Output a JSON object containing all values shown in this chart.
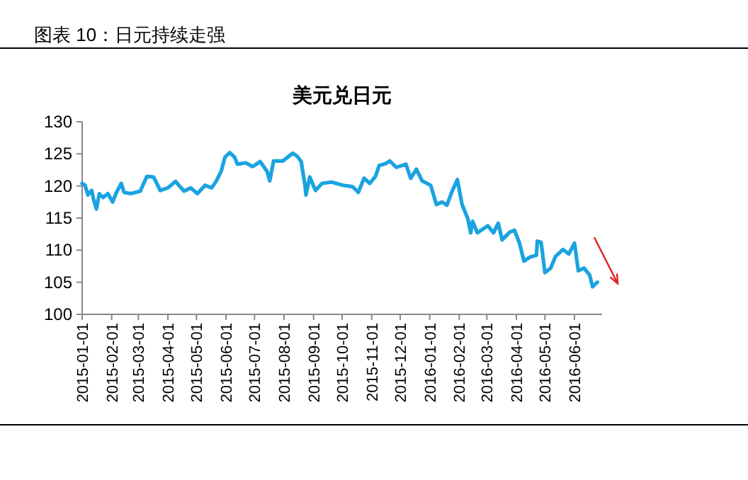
{
  "chart_data": {
    "type": "line",
    "title": "图表 10：日元持续走强",
    "subtitle": "美元兑日元",
    "x": [
      "2015-01-01",
      "2015-01-04",
      "2015-01-07",
      "2015-01-11",
      "2015-01-13",
      "2015-01-16",
      "2015-01-19",
      "2015-01-23",
      "2015-01-28",
      "2015-02-02",
      "2015-02-06",
      "2015-02-11",
      "2015-02-14",
      "2015-02-21",
      "2015-03-03",
      "2015-03-10",
      "2015-03-17",
      "2015-03-24",
      "2015-04-01",
      "2015-04-09",
      "2015-04-18",
      "2015-04-25",
      "2015-05-02",
      "2015-05-10",
      "2015-05-17",
      "2015-05-22",
      "2015-05-27",
      "2015-05-31",
      "2015-06-05",
      "2015-06-10",
      "2015-06-13",
      "2015-06-22",
      "2015-06-29",
      "2015-07-07",
      "2015-07-14",
      "2015-07-17",
      "2015-07-21",
      "2015-07-31",
      "2015-08-05",
      "2015-08-10",
      "2015-08-15",
      "2015-08-19",
      "2015-08-23",
      "2015-08-24",
      "2015-08-28",
      "2015-09-03",
      "2015-09-10",
      "2015-09-20",
      "2015-10-02",
      "2015-10-12",
      "2015-10-18",
      "2015-10-24",
      "2015-10-30",
      "2015-11-05",
      "2015-11-09",
      "2015-11-16",
      "2015-11-20",
      "2015-11-27",
      "2015-12-07",
      "2015-12-12",
      "2015-12-18",
      "2015-12-24",
      "2016-01-02",
      "2016-01-08",
      "2016-01-14",
      "2016-01-19",
      "2016-01-24",
      "2016-01-30",
      "2016-02-04",
      "2016-02-10",
      "2016-02-13",
      "2016-02-15",
      "2016-02-20",
      "2016-02-26",
      "2016-03-02",
      "2016-03-08",
      "2016-03-13",
      "2016-03-17",
      "2016-03-25",
      "2016-03-30",
      "2016-04-04",
      "2016-04-09",
      "2016-04-15",
      "2016-04-22",
      "2016-04-23",
      "2016-04-27",
      "2016-05-01",
      "2016-05-07",
      "2016-05-12",
      "2016-05-20",
      "2016-05-26",
      "2016-06-01",
      "2016-06-05",
      "2016-06-11",
      "2016-06-17",
      "2016-06-20",
      "2016-06-25"
    ],
    "series": [
      {
        "color": "#1aa3e0",
        "values": [
          120.4,
          120.1,
          118.6,
          119.3,
          117.9,
          116.4,
          118.8,
          118.2,
          118.8,
          117.5,
          119.0,
          120.4,
          119.0,
          118.8,
          119.2,
          121.5,
          121.4,
          119.3,
          119.7,
          120.7,
          119.2,
          119.7,
          118.8,
          120.1,
          119.7,
          120.8,
          122.3,
          124.5,
          125.2,
          124.5,
          123.4,
          123.6,
          123.0,
          123.8,
          122.3,
          120.8,
          123.9,
          123.9,
          124.5,
          125.1,
          124.6,
          123.8,
          120.1,
          118.6,
          121.4,
          119.3,
          120.4,
          120.6,
          120.1,
          119.9,
          119.0,
          121.2,
          120.4,
          121.5,
          123.2,
          123.5,
          123.9,
          122.9,
          123.4,
          121.2,
          122.6,
          120.8,
          120.1,
          117.1,
          117.5,
          117.0,
          119.0,
          121.0,
          117.1,
          114.9,
          112.7,
          114.5,
          112.7,
          113.3,
          113.8,
          112.7,
          114.2,
          111.6,
          112.8,
          113.1,
          111.2,
          108.3,
          108.9,
          109.2,
          111.4,
          111.2,
          106.5,
          107.2,
          109.0,
          110.1,
          109.4,
          111.1,
          106.8,
          107.2,
          106.1,
          104.3,
          105.0
        ]
      }
    ],
    "xlim": [
      "2015-01-01",
      "2016-06-30"
    ],
    "xticks": [
      "2015-01-01",
      "2015-02-01",
      "2015-03-01",
      "2015-04-01",
      "2015-05-01",
      "2015-06-01",
      "2015-07-01",
      "2015-08-01",
      "2015-09-01",
      "2015-10-01",
      "2015-11-01",
      "2015-12-01",
      "2016-01-01",
      "2016-02-01",
      "2016-03-01",
      "2016-04-01",
      "2016-05-01",
      "2016-06-01"
    ],
    "ylim": [
      100,
      130
    ],
    "yticks": [
      100,
      105,
      110,
      115,
      120,
      125,
      130
    ],
    "grid": false,
    "marker": "none",
    "line_style": "solid"
  }
}
